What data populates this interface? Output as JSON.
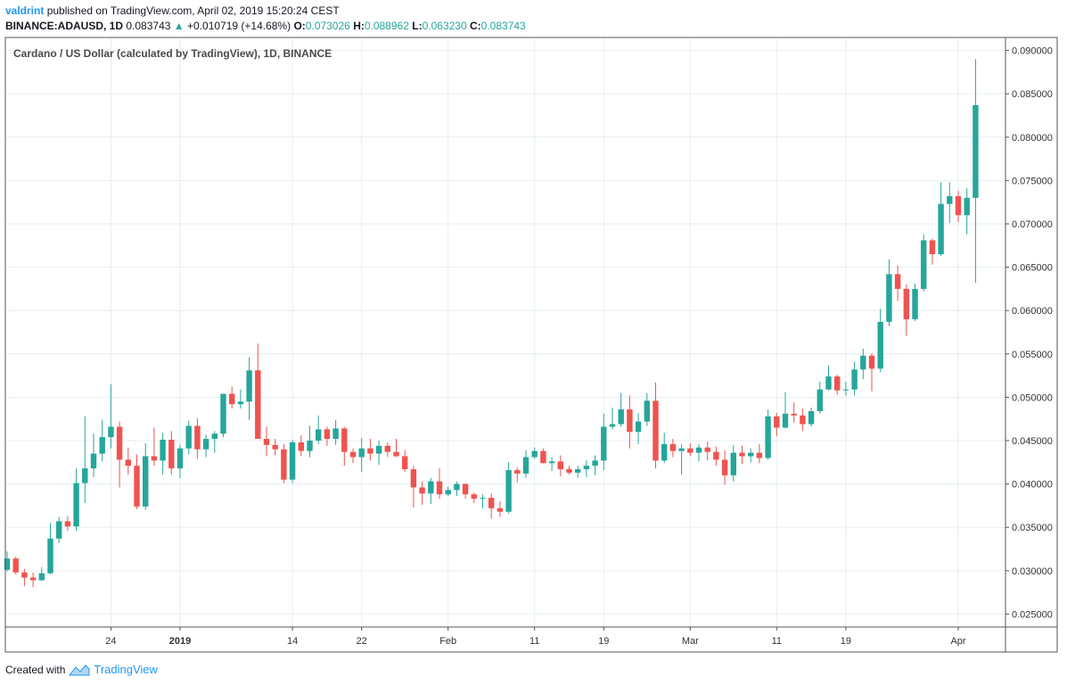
{
  "header": {
    "username": "valdrint",
    "published_text": "published on TradingView.com, April 02, 2019 15:20:24 CEST",
    "symbol": "BINANCE:ADAUSD, 1D",
    "last": "0.083743",
    "change": "+0.010719 (+14.68%)",
    "open_label": "O:",
    "open": "0.073026",
    "high_label": "H:",
    "high": "0.088962",
    "low_label": "L:",
    "low": "0.063230",
    "close_label": "C:",
    "close": "0.083743"
  },
  "footer": {
    "created_with": "Created with",
    "brand": "TradingView"
  },
  "colors": {
    "up": "#26a69a",
    "down": "#ef5350",
    "grid": "#e6eef3",
    "axis": "#555555",
    "accent": "#2196f3"
  },
  "chart_data": {
    "type": "candlestick",
    "title": "Cardano / US Dollar (calculated by TradingView), 1D, BINANCE",
    "ylim": [
      0.0235,
      0.0915
    ],
    "yticks": [
      "0.025000",
      "0.030000",
      "0.035000",
      "0.040000",
      "0.045000",
      "0.050000",
      "0.055000",
      "0.060000",
      "0.065000",
      "0.070000",
      "0.075000",
      "0.080000",
      "0.085000",
      "0.090000"
    ],
    "xticks": [
      {
        "label": "24",
        "index": 12,
        "bold": false
      },
      {
        "label": "2019",
        "index": 20,
        "bold": true
      },
      {
        "label": "14",
        "index": 33,
        "bold": false
      },
      {
        "label": "22",
        "index": 41,
        "bold": false
      },
      {
        "label": "Feb",
        "index": 51,
        "bold": false
      },
      {
        "label": "11",
        "index": 61,
        "bold": false
      },
      {
        "label": "19",
        "index": 69,
        "bold": false
      },
      {
        "label": "Mar",
        "index": 79,
        "bold": false
      },
      {
        "label": "11",
        "index": 89,
        "bold": false
      },
      {
        "label": "19",
        "index": 97,
        "bold": false
      },
      {
        "label": "Apr",
        "index": 110,
        "bold": false
      }
    ],
    "ohlc": [
      [
        0.0301,
        0.0322,
        0.0299,
        0.0314
      ],
      [
        0.0314,
        0.0316,
        0.0296,
        0.0298
      ],
      [
        0.0298,
        0.0302,
        0.0282,
        0.0292
      ],
      [
        0.0292,
        0.0298,
        0.0281,
        0.0289
      ],
      [
        0.0289,
        0.0304,
        0.0288,
        0.0297
      ],
      [
        0.0297,
        0.0355,
        0.0296,
        0.0337
      ],
      [
        0.0337,
        0.0362,
        0.0332,
        0.0357
      ],
      [
        0.0357,
        0.0363,
        0.0346,
        0.0351
      ],
      [
        0.0351,
        0.0418,
        0.0346,
        0.0401
      ],
      [
        0.0401,
        0.0478,
        0.0378,
        0.0418
      ],
      [
        0.0418,
        0.0458,
        0.0408,
        0.0435
      ],
      [
        0.0435,
        0.0474,
        0.0426,
        0.0454
      ],
      [
        0.0454,
        0.0515,
        0.0441,
        0.0466
      ],
      [
        0.0466,
        0.0472,
        0.0396,
        0.0428
      ],
      [
        0.0428,
        0.0442,
        0.0411,
        0.0421
      ],
      [
        0.0421,
        0.0434,
        0.0371,
        0.0374
      ],
      [
        0.0374,
        0.0447,
        0.037,
        0.0432
      ],
      [
        0.0432,
        0.0465,
        0.0421,
        0.0427
      ],
      [
        0.0427,
        0.0459,
        0.0411,
        0.0451
      ],
      [
        0.0451,
        0.0461,
        0.0411,
        0.0418
      ],
      [
        0.0418,
        0.0445,
        0.0407,
        0.0441
      ],
      [
        0.0441,
        0.0473,
        0.0434,
        0.0467
      ],
      [
        0.0467,
        0.0476,
        0.0429,
        0.044
      ],
      [
        0.044,
        0.0457,
        0.0431,
        0.0452
      ],
      [
        0.0452,
        0.0461,
        0.0436,
        0.0458
      ],
      [
        0.0458,
        0.0503,
        0.0454,
        0.0504
      ],
      [
        0.0504,
        0.0512,
        0.0487,
        0.0492
      ],
      [
        0.0492,
        0.0509,
        0.0487,
        0.0495
      ],
      [
        0.0495,
        0.0546,
        0.0474,
        0.0531
      ],
      [
        0.0531,
        0.0562,
        0.0453,
        0.0452
      ],
      [
        0.0452,
        0.0466,
        0.0432,
        0.0445
      ],
      [
        0.0445,
        0.0452,
        0.0433,
        0.044
      ],
      [
        0.044,
        0.0446,
        0.0401,
        0.0405
      ],
      [
        0.0405,
        0.0451,
        0.0401,
        0.0448
      ],
      [
        0.0448,
        0.0456,
        0.0432,
        0.0438
      ],
      [
        0.0438,
        0.0467,
        0.0431,
        0.045
      ],
      [
        0.045,
        0.0479,
        0.0446,
        0.0463
      ],
      [
        0.0463,
        0.0466,
        0.0444,
        0.0452
      ],
      [
        0.0452,
        0.0474,
        0.0445,
        0.0464
      ],
      [
        0.0464,
        0.0466,
        0.0421,
        0.0437
      ],
      [
        0.0437,
        0.0441,
        0.0424,
        0.0431
      ],
      [
        0.0431,
        0.0453,
        0.0414,
        0.0441
      ],
      [
        0.0441,
        0.0452,
        0.0427,
        0.0435
      ],
      [
        0.0435,
        0.045,
        0.0422,
        0.0444
      ],
      [
        0.0444,
        0.0448,
        0.0431,
        0.0437
      ],
      [
        0.0437,
        0.0452,
        0.0431,
        0.0432
      ],
      [
        0.0432,
        0.0439,
        0.0414,
        0.0417
      ],
      [
        0.0417,
        0.0421,
        0.0373,
        0.0396
      ],
      [
        0.0396,
        0.0403,
        0.0376,
        0.0389
      ],
      [
        0.0389,
        0.0407,
        0.0377,
        0.0403
      ],
      [
        0.0403,
        0.0418,
        0.0383,
        0.0388
      ],
      [
        0.0388,
        0.0397,
        0.0386,
        0.0393
      ],
      [
        0.0393,
        0.0403,
        0.0386,
        0.04
      ],
      [
        0.04,
        0.0401,
        0.0383,
        0.0388
      ],
      [
        0.0388,
        0.039,
        0.0378,
        0.0383
      ],
      [
        0.0383,
        0.0388,
        0.0372,
        0.0384
      ],
      [
        0.0384,
        0.0389,
        0.036,
        0.0372
      ],
      [
        0.0372,
        0.038,
        0.0362,
        0.0368
      ],
      [
        0.0368,
        0.0425,
        0.0366,
        0.0416
      ],
      [
        0.0416,
        0.0419,
        0.0402,
        0.0412
      ],
      [
        0.0412,
        0.0439,
        0.0407,
        0.0431
      ],
      [
        0.0431,
        0.0442,
        0.0429,
        0.0438
      ],
      [
        0.0438,
        0.0441,
        0.0424,
        0.0424
      ],
      [
        0.0424,
        0.0431,
        0.0415,
        0.0426
      ],
      [
        0.0426,
        0.0433,
        0.0409,
        0.0417
      ],
      [
        0.0417,
        0.0421,
        0.0411,
        0.0413
      ],
      [
        0.0413,
        0.0421,
        0.0407,
        0.0417
      ],
      [
        0.0417,
        0.0427,
        0.0408,
        0.0421
      ],
      [
        0.0421,
        0.0433,
        0.041,
        0.0427
      ],
      [
        0.0427,
        0.0481,
        0.0416,
        0.0466
      ],
      [
        0.0466,
        0.0488,
        0.0463,
        0.0469
      ],
      [
        0.0469,
        0.0505,
        0.0466,
        0.0486
      ],
      [
        0.0486,
        0.0502,
        0.0441,
        0.046
      ],
      [
        0.046,
        0.0482,
        0.0446,
        0.0472
      ],
      [
        0.0472,
        0.0505,
        0.0467,
        0.0496
      ],
      [
        0.0496,
        0.0517,
        0.0418,
        0.0427
      ],
      [
        0.0427,
        0.0459,
        0.0424,
        0.0446
      ],
      [
        0.0446,
        0.0452,
        0.0431,
        0.0438
      ],
      [
        0.0438,
        0.0446,
        0.0411,
        0.0441
      ],
      [
        0.0441,
        0.0447,
        0.0432,
        0.0436
      ],
      [
        0.0436,
        0.0446,
        0.0426,
        0.0442
      ],
      [
        0.0442,
        0.0449,
        0.0427,
        0.0437
      ],
      [
        0.0437,
        0.0443,
        0.0421,
        0.0428
      ],
      [
        0.0428,
        0.0439,
        0.0399,
        0.041
      ],
      [
        0.041,
        0.0445,
        0.0403,
        0.0436
      ],
      [
        0.0436,
        0.0444,
        0.0423,
        0.0432
      ],
      [
        0.0432,
        0.0441,
        0.0425,
        0.0436
      ],
      [
        0.0436,
        0.0446,
        0.0424,
        0.043
      ],
      [
        0.043,
        0.0486,
        0.0428,
        0.0478
      ],
      [
        0.0478,
        0.0482,
        0.0455,
        0.0465
      ],
      [
        0.0465,
        0.0506,
        0.0464,
        0.0481
      ],
      [
        0.0481,
        0.0494,
        0.0471,
        0.0479
      ],
      [
        0.0479,
        0.0487,
        0.0461,
        0.0469
      ],
      [
        0.0469,
        0.0488,
        0.0466,
        0.0484
      ],
      [
        0.0484,
        0.0518,
        0.0481,
        0.0509
      ],
      [
        0.0509,
        0.0537,
        0.0508,
        0.0524
      ],
      [
        0.0524,
        0.0526,
        0.0503,
        0.0508
      ],
      [
        0.0508,
        0.0518,
        0.0502,
        0.0509
      ],
      [
        0.0509,
        0.0541,
        0.0502,
        0.0532
      ],
      [
        0.0532,
        0.0556,
        0.0521,
        0.0548
      ],
      [
        0.0548,
        0.0551,
        0.0507,
        0.0533
      ],
      [
        0.0533,
        0.0602,
        0.0529,
        0.0587
      ],
      [
        0.0587,
        0.0659,
        0.0582,
        0.0642
      ],
      [
        0.0642,
        0.0652,
        0.0611,
        0.0625
      ],
      [
        0.0625,
        0.063,
        0.0571,
        0.059
      ],
      [
        0.059,
        0.0631,
        0.0588,
        0.0625
      ],
      [
        0.0625,
        0.0688,
        0.0622,
        0.0681
      ],
      [
        0.0681,
        0.0683,
        0.0653,
        0.0665
      ],
      [
        0.0665,
        0.0748,
        0.0663,
        0.0723
      ],
      [
        0.0723,
        0.0748,
        0.0701,
        0.0732
      ],
      [
        0.0732,
        0.0738,
        0.0702,
        0.071
      ],
      [
        0.071,
        0.0741,
        0.0688,
        0.073
      ],
      [
        0.073,
        0.089,
        0.0632,
        0.0837
      ]
    ]
  }
}
